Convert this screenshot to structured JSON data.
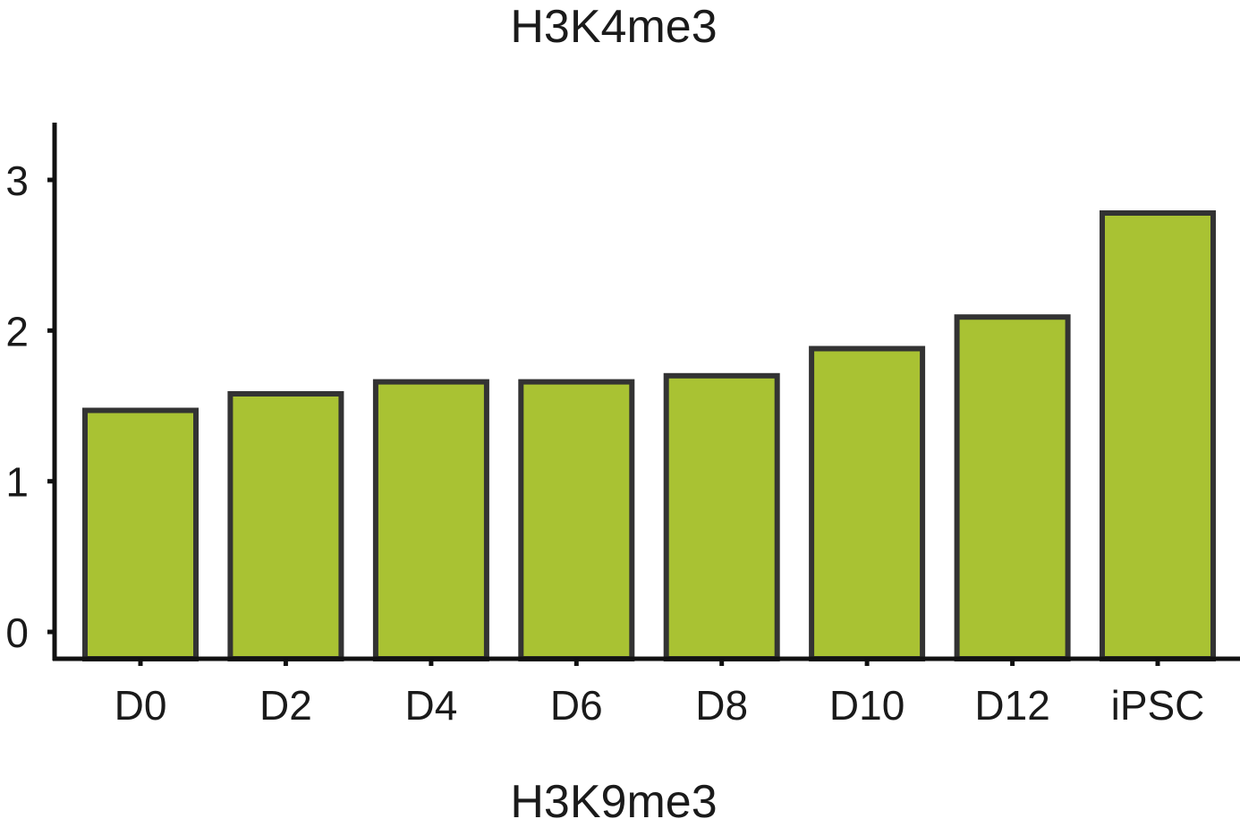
{
  "chart_data": {
    "type": "bar",
    "title": "H3K4me3",
    "xlabel": "H3K9me3",
    "ylabel": "",
    "categories": [
      "D0",
      "D2",
      "D4",
      "D6",
      "D8",
      "D10",
      "D12",
      "iPSC"
    ],
    "values": [
      1.47,
      1.58,
      1.66,
      1.66,
      1.7,
      1.88,
      2.09,
      2.78
    ],
    "ylim": [
      -0.15,
      3.4
    ],
    "yticks": [
      "0",
      "1",
      "2",
      "3"
    ],
    "grid": false,
    "colors": {
      "bar_fill": "#a9c233",
      "bar_stroke": "#333333",
      "axis": "#111111"
    }
  }
}
